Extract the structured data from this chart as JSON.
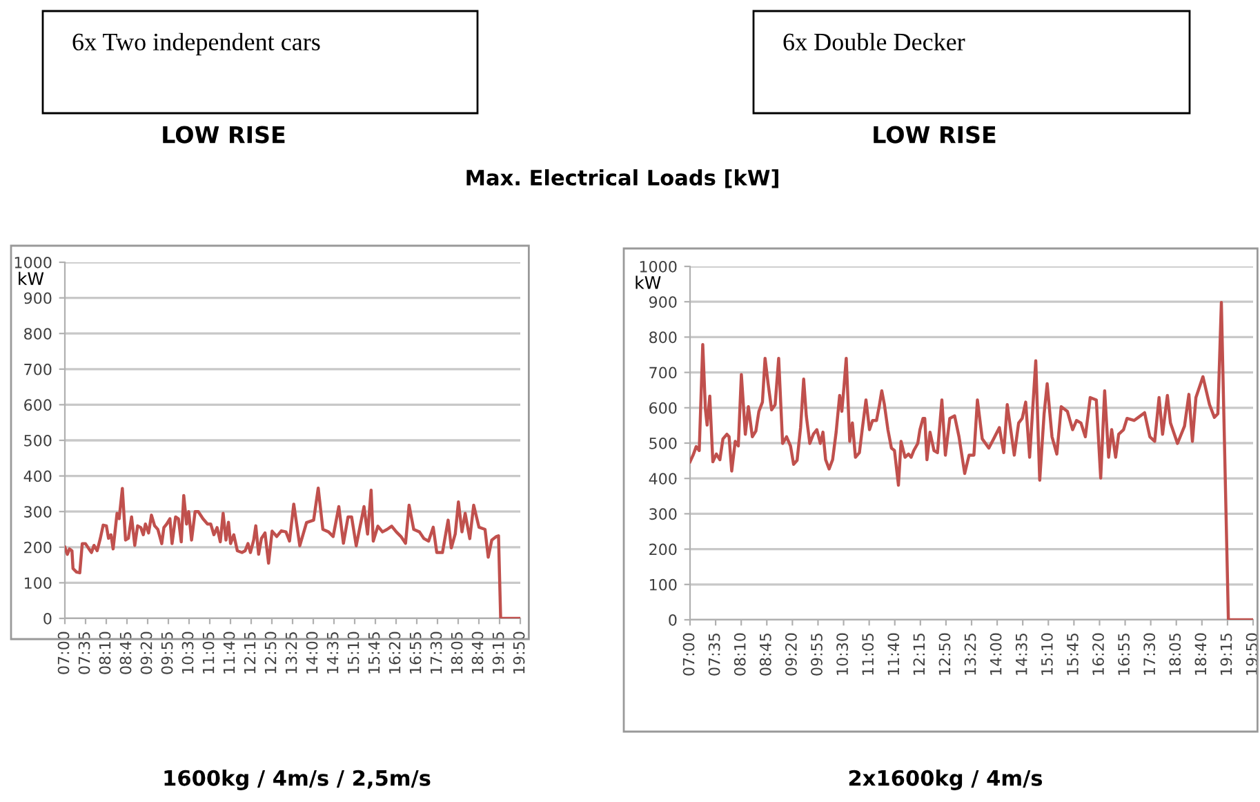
{
  "chart_data": [
    {
      "type": "line",
      "title": "6x Two independent cars",
      "subtitle": "LOW RISE",
      "ylabel": "kW",
      "annotations": [
        "Max. Electrical Loads [kW]",
        "1600kg / 4m/s / 2,5m/s"
      ],
      "series": [
        {
          "color": "#c0504d",
          "x": [
            7.0,
            7.07,
            7.13,
            7.2,
            7.23,
            7.33,
            7.42,
            7.49,
            7.58,
            7.68,
            7.75,
            7.82,
            7.91,
            8.0,
            8.08,
            8.17,
            8.23,
            8.3,
            8.36,
            8.47,
            8.53,
            8.62,
            8.71,
            8.79,
            8.88,
            8.97,
            9.05,
            9.14,
            9.21,
            9.27,
            9.36,
            9.44,
            9.53,
            9.62,
            9.73,
            9.79,
            9.87,
            9.96,
            10.02,
            10.12,
            10.2,
            10.28,
            10.35,
            10.43,
            10.49,
            10.57,
            10.67,
            10.76,
            10.89,
            11.02,
            11.11,
            11.2,
            11.29,
            11.38,
            11.46,
            11.54,
            11.61,
            11.67,
            11.76,
            11.86,
            11.99,
            12.08,
            12.16,
            12.23,
            12.32,
            12.38,
            12.46,
            12.54,
            12.64,
            12.74,
            12.84,
            12.97,
            13.1,
            13.23,
            13.33,
            13.45,
            13.62,
            13.81,
            14.01,
            14.14,
            14.27,
            14.43,
            14.56,
            14.72,
            14.85,
            14.98,
            15.08,
            15.21,
            15.34,
            15.43,
            15.53,
            15.63,
            15.69,
            15.82,
            15.95,
            16.08,
            16.21,
            16.34,
            16.47,
            16.6,
            16.7,
            16.83,
            16.99,
            17.12,
            17.25,
            17.38,
            17.48,
            17.64,
            17.8,
            17.89,
            18.0,
            18.09,
            18.19,
            18.28,
            18.41,
            18.52,
            18.67,
            18.84,
            18.93,
            19.03,
            19.16,
            19.22,
            19.28,
            19.83
          ],
          "values": [
            200,
            180,
            195,
            190,
            140,
            130,
            128,
            210,
            210,
            195,
            185,
            205,
            190,
            225,
            262,
            260,
            225,
            235,
            195,
            295,
            280,
            365,
            220,
            225,
            285,
            205,
            260,
            255,
            235,
            265,
            240,
            290,
            260,
            250,
            210,
            255,
            265,
            280,
            210,
            285,
            280,
            215,
            345,
            265,
            300,
            220,
            300,
            300,
            280,
            265,
            265,
            235,
            255,
            215,
            295,
            220,
            270,
            210,
            235,
            190,
            185,
            190,
            210,
            185,
            220,
            260,
            180,
            225,
            240,
            155,
            245,
            230,
            246,
            243,
            217,
            321,
            204,
            269,
            276,
            366,
            250,
            243,
            230,
            314,
            211,
            285,
            285,
            204,
            269,
            314,
            237,
            360,
            217,
            259,
            243,
            250,
            259,
            243,
            230,
            211,
            318,
            250,
            243,
            224,
            217,
            256,
            185,
            185,
            276,
            198,
            237,
            327,
            243,
            295,
            224,
            318,
            256,
            250,
            172,
            220,
            230,
            232,
            0,
            0
          ]
        }
      ],
      "xlim": [
        7,
        19.8333
      ],
      "xticks": [
        {
          "value": 7,
          "label": "07:00"
        },
        {
          "value": 7.5833,
          "label": "07:35"
        },
        {
          "value": 8.1667,
          "label": "08:10"
        },
        {
          "value": 8.75,
          "label": "08:45"
        },
        {
          "value": 9.3333,
          "label": "09:20"
        },
        {
          "value": 9.9167,
          "label": "09:55"
        },
        {
          "value": 10.5,
          "label": "10:30"
        },
        {
          "value": 11.0833,
          "label": "11:05"
        },
        {
          "value": 11.6667,
          "label": "11:40"
        },
        {
          "value": 12.25,
          "label": "12:15"
        },
        {
          "value": 12.8333,
          "label": "12:50"
        },
        {
          "value": 13.4167,
          "label": "13:25"
        },
        {
          "value": 14,
          "label": "14:00"
        },
        {
          "value": 14.5833,
          "label": "14:35"
        },
        {
          "value": 15.1667,
          "label": "15:10"
        },
        {
          "value": 15.75,
          "label": "15:45"
        },
        {
          "value": 16.3333,
          "label": "16:20"
        },
        {
          "value": 16.9167,
          "label": "16:55"
        },
        {
          "value": 17.5,
          "label": "17:30"
        },
        {
          "value": 18.0833,
          "label": "18:05"
        },
        {
          "value": 18.6667,
          "label": "18:40"
        },
        {
          "value": 19.25,
          "label": "19:15"
        },
        {
          "value": 19.8333,
          "label": "19:50"
        }
      ],
      "ylim": [
        0,
        1000
      ],
      "yticks": [
        0,
        100,
        200,
        300,
        400,
        500,
        600,
        700,
        800,
        900,
        1000
      ],
      "grid": "y",
      "marker": "none",
      "line_style": "solid"
    },
    {
      "type": "line",
      "title": "6x Double Decker",
      "subtitle": "LOW RISE",
      "ylabel": "kW",
      "annotations": [
        "2x1600kg / 4m/s"
      ],
      "series": [
        {
          "color": "#c0504d",
          "x": [
            7.0,
            7.07,
            7.14,
            7.21,
            7.29,
            7.35,
            7.39,
            7.45,
            7.52,
            7.6,
            7.68,
            7.75,
            7.84,
            7.89,
            7.95,
            8.03,
            8.1,
            8.17,
            8.26,
            8.33,
            8.42,
            8.5,
            8.57,
            8.65,
            8.71,
            8.78,
            8.86,
            8.94,
            9.02,
            9.11,
            9.2,
            9.29,
            9.36,
            9.44,
            9.52,
            9.59,
            9.65,
            9.73,
            9.81,
            9.89,
            9.97,
            10.03,
            10.09,
            10.17,
            10.25,
            10.33,
            10.41,
            10.46,
            10.51,
            10.56,
            10.64,
            10.7,
            10.77,
            10.86,
            10.93,
            11.01,
            11.09,
            11.16,
            11.25,
            11.31,
            11.37,
            11.43,
            11.51,
            11.59,
            11.66,
            11.75,
            11.81,
            11.9,
            11.98,
            12.04,
            12.1,
            12.19,
            12.24,
            12.31,
            12.35,
            12.4,
            12.47,
            12.56,
            12.64,
            12.74,
            12.82,
            12.92,
            13.03,
            13.13,
            13.26,
            13.36,
            13.47,
            13.55,
            13.66,
            13.81,
            13.92,
            14.05,
            14.15,
            14.23,
            14.39,
            14.49,
            14.57,
            14.65,
            14.74,
            14.88,
            14.97,
            15.07,
            15.14,
            15.25,
            15.36,
            15.46,
            15.6,
            15.72,
            15.81,
            15.91,
            16.01,
            16.12,
            16.26,
            16.36,
            16.45,
            16.54,
            16.61,
            16.7,
            16.77,
            16.88,
            16.96,
            17.12,
            17.22,
            17.36,
            17.48,
            17.59,
            17.69,
            17.77,
            17.88,
            17.95,
            18.11,
            18.27,
            18.37,
            18.45,
            18.53,
            18.69,
            18.84,
            18.95,
            19.03,
            19.11,
            19.27,
            19.83
          ],
          "values": [
            447,
            466,
            490,
            479,
            779,
            596,
            551,
            633,
            447,
            469,
            453,
            512,
            525,
            518,
            421,
            505,
            492,
            694,
            525,
            603,
            518,
            534,
            590,
            616,
            740,
            668,
            594,
            609,
            740,
            499,
            518,
            492,
            440,
            451,
            544,
            681,
            577,
            499,
            525,
            538,
            499,
            531,
            453,
            427,
            453,
            531,
            635,
            590,
            661,
            740,
            505,
            557,
            460,
            473,
            544,
            622,
            538,
            564,
            564,
            603,
            648,
            609,
            538,
            486,
            479,
            381,
            505,
            460,
            469,
            460,
            479,
            499,
            538,
            570,
            570,
            453,
            531,
            479,
            473,
            622,
            466,
            570,
            577,
            518,
            414,
            466,
            466,
            622,
            512,
            486,
            512,
            544,
            473,
            609,
            466,
            557,
            570,
            616,
            460,
            733,
            395,
            583,
            668,
            518,
            469,
            603,
            590,
            538,
            564,
            557,
            518,
            629,
            622,
            401,
            648,
            460,
            538,
            460,
            525,
            538,
            570,
            564,
            573,
            586,
            518,
            505,
            629,
            525,
            635,
            557,
            499,
            548,
            638,
            505,
            629,
            688,
            609,
            573,
            583,
            898,
            0,
            0
          ]
        }
      ],
      "xlim": [
        7,
        19.8333
      ],
      "xticks": [
        {
          "value": 7,
          "label": "07:00"
        },
        {
          "value": 7.5833,
          "label": "07:35"
        },
        {
          "value": 8.1667,
          "label": "08:10"
        },
        {
          "value": 8.75,
          "label": "08:45"
        },
        {
          "value": 9.3333,
          "label": "09:20"
        },
        {
          "value": 9.9167,
          "label": "09:55"
        },
        {
          "value": 10.5,
          "label": "10:30"
        },
        {
          "value": 11.0833,
          "label": "11:05"
        },
        {
          "value": 11.6667,
          "label": "11:40"
        },
        {
          "value": 12.25,
          "label": "12:15"
        },
        {
          "value": 12.8333,
          "label": "12:50"
        },
        {
          "value": 13.4167,
          "label": "13:25"
        },
        {
          "value": 14,
          "label": "14:00"
        },
        {
          "value": 14.5833,
          "label": "14:35"
        },
        {
          "value": 15.1667,
          "label": "15:10"
        },
        {
          "value": 15.75,
          "label": "15:45"
        },
        {
          "value": 16.3333,
          "label": "16:20"
        },
        {
          "value": 16.9167,
          "label": "16:55"
        },
        {
          "value": 17.5,
          "label": "17:30"
        },
        {
          "value": 18.0833,
          "label": "18:05"
        },
        {
          "value": 18.6667,
          "label": "18:40"
        },
        {
          "value": 19.25,
          "label": "19:15"
        },
        {
          "value": 19.8333,
          "label": "19:50"
        }
      ],
      "ylim": [
        0,
        1000
      ],
      "yticks": [
        0,
        100,
        200,
        300,
        400,
        500,
        600,
        700,
        800,
        900,
        1000
      ],
      "grid": "y",
      "marker": "none",
      "line_style": "solid"
    }
  ]
}
